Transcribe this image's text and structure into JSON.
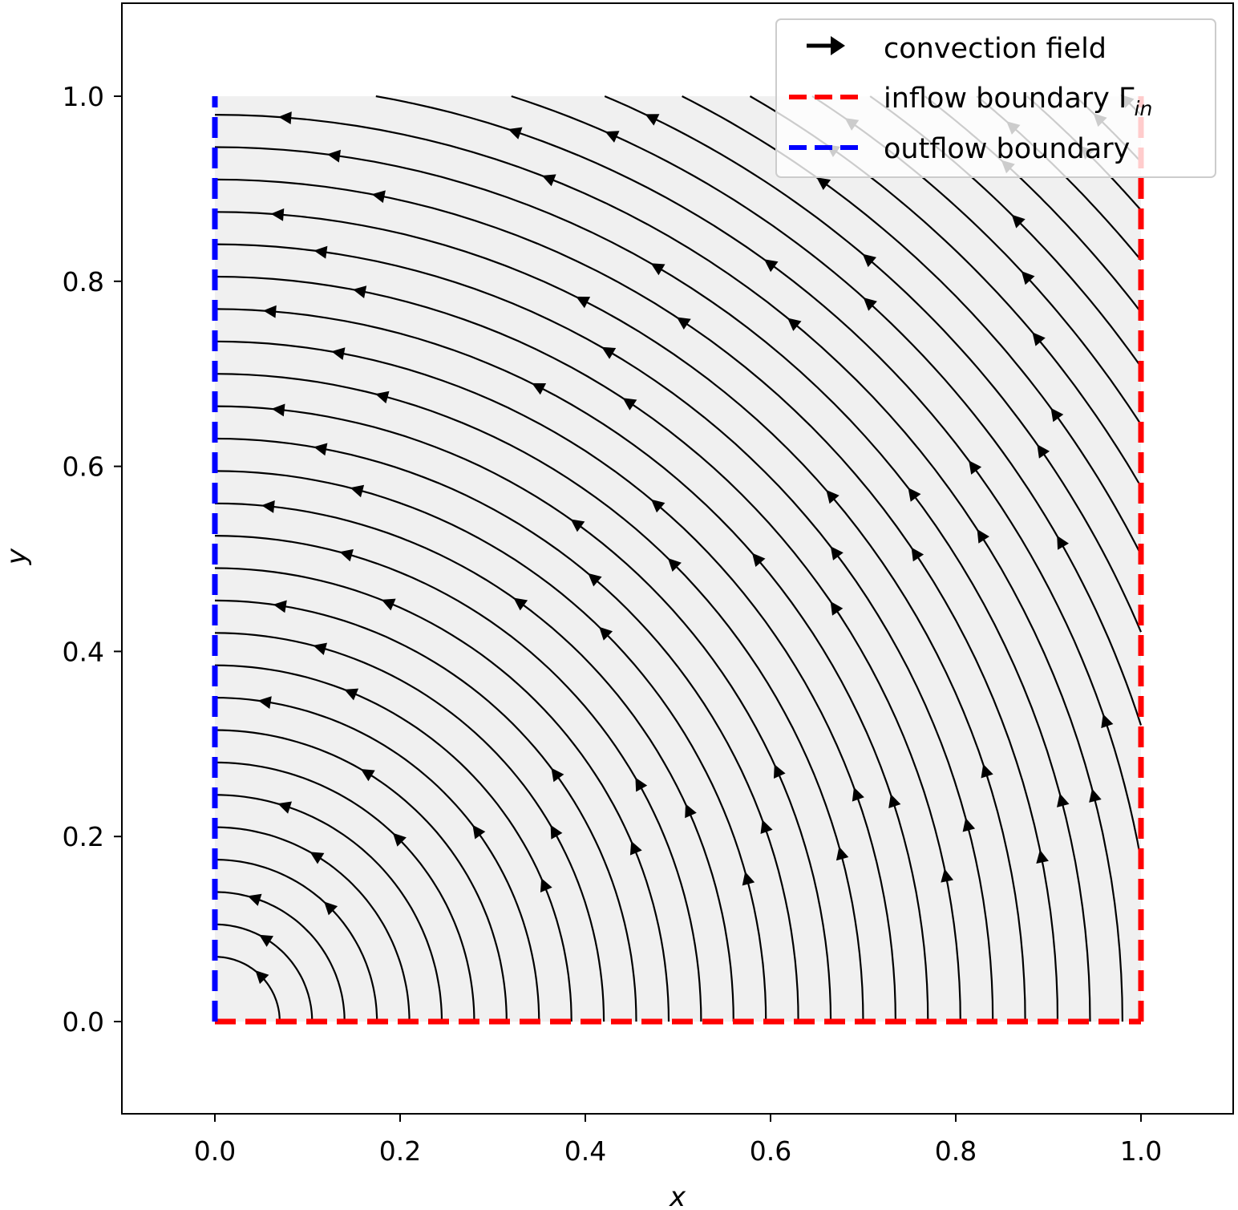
{
  "chart_data": {
    "type": "streamplot",
    "title": "",
    "xlabel": "x",
    "ylabel": "y",
    "xlim": [
      -0.1,
      1.1
    ],
    "ylim": [
      -0.1,
      1.1
    ],
    "xticks": [
      "0.0",
      "0.2",
      "0.4",
      "0.6",
      "0.8",
      "1.0"
    ],
    "yticks": [
      "0.0",
      "0.2",
      "0.4",
      "0.6",
      "0.8",
      "1.0"
    ],
    "domain": {
      "x": [
        0,
        1
      ],
      "y": [
        0,
        1
      ],
      "fill": "#f0f0f0"
    },
    "field": {
      "u": "-y",
      "v": "x",
      "description_shown": "counter-clockwise rotation about the origin"
    },
    "streamline_radii": [
      0.07,
      0.105,
      0.14,
      0.175,
      0.21,
      0.245,
      0.28,
      0.315,
      0.35,
      0.385,
      0.42,
      0.455,
      0.49,
      0.525,
      0.56,
      0.595,
      0.63,
      0.665,
      0.7,
      0.735,
      0.77,
      0.805,
      0.84,
      0.875,
      0.91,
      0.945,
      0.98,
      1.015,
      1.05,
      1.085,
      1.12,
      1.155,
      1.19,
      1.225,
      1.26,
      1.295,
      1.33,
      1.365,
      1.4
    ],
    "boundaries": [
      {
        "name": "inflow boundary Γin",
        "color": "#ff0000",
        "segments": [
          [
            [
              0,
              0
            ],
            [
              1,
              0
            ]
          ],
          [
            [
              1,
              0
            ],
            [
              1,
              1
            ]
          ]
        ]
      },
      {
        "name": "outflow boundary",
        "color": "#0000ff",
        "segments": [
          [
            [
              0,
              0
            ],
            [
              0,
              1
            ]
          ]
        ]
      }
    ],
    "legend": {
      "position": "top-right",
      "entries": [
        {
          "label": "convection field",
          "style": "arrow",
          "color": "#000000"
        },
        {
          "label": "inflow boundary Γ",
          "subscript": "in",
          "style": "dashed",
          "color": "#ff0000"
        },
        {
          "label": "outflow boundary",
          "style": "dashed",
          "color": "#0000ff"
        }
      ]
    },
    "grid": false
  }
}
